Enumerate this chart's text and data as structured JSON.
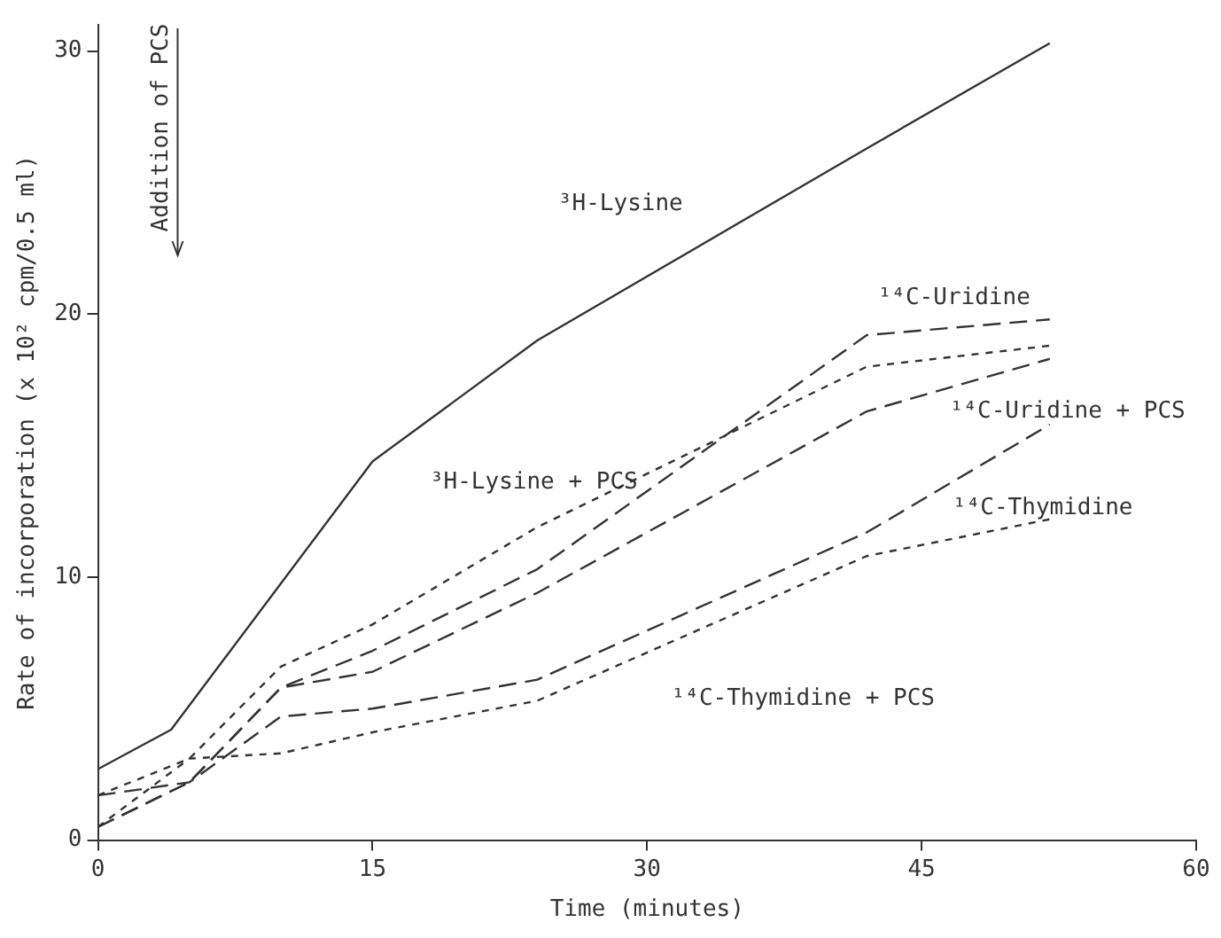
{
  "chart_data": {
    "type": "line",
    "xlabel": "Time (minutes)",
    "ylabel": "Rate of incorporation (x 10² cpm/0.5 ml)",
    "xlim": [
      0,
      60
    ],
    "xticks": [
      0,
      15,
      30,
      45,
      60
    ],
    "ylim": [
      0,
      31
    ],
    "yticks": [
      0,
      10,
      20,
      30
    ],
    "grid": false,
    "legend": false,
    "marker": "none",
    "series": [
      {
        "name": "³H-Lysine",
        "color": "#333333",
        "line_style": "solid",
        "x": [
          0,
          4,
          15,
          24,
          42,
          52
        ],
        "values": [
          2.7,
          4.2,
          14.4,
          19.0,
          26.3,
          30.3
        ]
      },
      {
        "name": "¹⁴C-Uridine",
        "color": "#333333",
        "line_style": "dashed",
        "x": [
          0,
          5,
          10,
          15,
          24,
          42,
          52
        ],
        "values": [
          0.5,
          2.2,
          5.8,
          7.2,
          10.3,
          19.2,
          19.8
        ]
      },
      {
        "name": "³H-Lysine + PCS",
        "color": "#333333",
        "line_style": "dotted",
        "x": [
          0,
          5,
          10,
          15,
          24,
          42,
          52
        ],
        "values": [
          1.7,
          3.1,
          6.6,
          8.2,
          11.9,
          18.0,
          18.8
        ]
      },
      {
        "name": "¹⁴C-Uridine + PCS",
        "color": "#333333",
        "line_style": "dashed",
        "x": [
          0,
          5,
          10,
          15,
          24,
          42,
          52
        ],
        "values": [
          0.5,
          2.2,
          5.8,
          6.4,
          9.4,
          16.3,
          18.3
        ]
      },
      {
        "name": "¹⁴C-Thymidine",
        "color": "#333333",
        "line_style": "dashed",
        "x": [
          0,
          5,
          10,
          15,
          24,
          42,
          52
        ],
        "values": [
          1.7,
          2.2,
          4.7,
          5.0,
          6.1,
          11.7,
          15.8
        ]
      },
      {
        "name": "¹⁴C-Thymidine + PCS",
        "color": "#333333",
        "line_style": "dotted",
        "x": [
          0,
          5,
          10,
          15,
          24,
          42,
          52
        ],
        "values": [
          0.5,
          3.1,
          3.3,
          4.1,
          5.3,
          10.8,
          12.2
        ]
      }
    ],
    "annotations": [
      "Addition of PCS"
    ]
  }
}
